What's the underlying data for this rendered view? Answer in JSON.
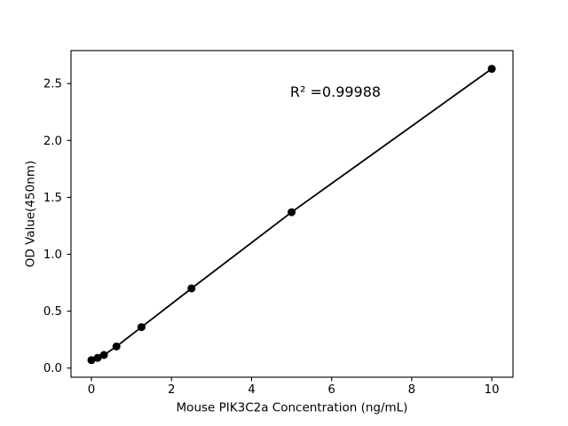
{
  "chart_data": {
    "type": "scatter",
    "title": "",
    "xlabel": "Mouse PIK3C2a Concentration (ng/mL)",
    "ylabel": "OD Value(450nm)",
    "annotation": "R² =0.99988",
    "x": [
      0,
      0.156,
      0.3125,
      0.625,
      1.25,
      2.5,
      5,
      10
    ],
    "y": [
      0.07,
      0.09,
      0.115,
      0.19,
      0.36,
      0.7,
      1.37,
      2.63
    ],
    "xlim": [
      -0.51,
      10.53
    ],
    "ylim": [
      -0.08,
      2.79
    ],
    "xticks": {
      "values": [
        0,
        2,
        4,
        6,
        8,
        10
      ],
      "labels": [
        "0",
        "2",
        "4",
        "6",
        "8",
        "10"
      ]
    },
    "yticks": {
      "values": [
        0,
        0.5,
        1.0,
        1.5,
        2.0,
        2.5
      ],
      "labels": [
        "0.0",
        "0.5",
        "1.0",
        "1.5",
        "2.0",
        "2.5"
      ]
    },
    "grid": false,
    "legend": null,
    "line_color": "#000000",
    "marker_color": "#000000",
    "axis_color": "#000000",
    "background_color": "#ffffff"
  }
}
